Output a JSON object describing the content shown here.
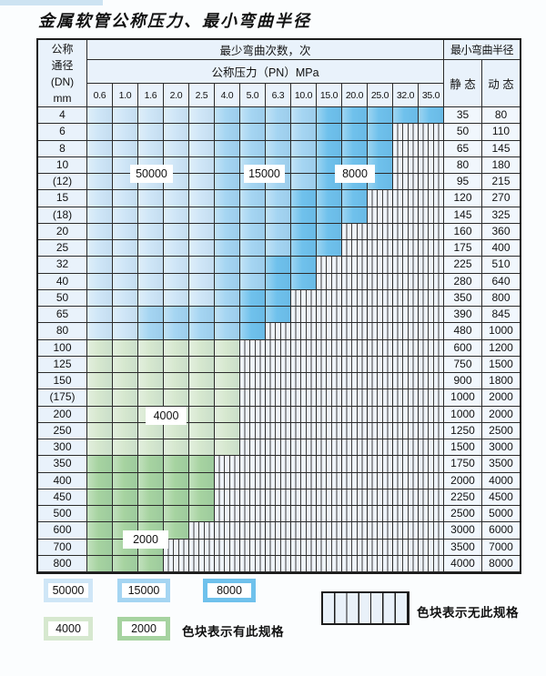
{
  "title": "金属软管公称压力、最小弯曲半径",
  "colors": {
    "cL": "#cfe6f7",
    "cM": "#a5d5f2",
    "cD": "#6fc1ec",
    "cg": "#d6e8cf",
    "cG": "#a6d3a0",
    "headerBg": "#e9f2fb",
    "valueBg": "#f1f7fd",
    "hatchBg": "#eef3f9",
    "grid": "#2b2b2b"
  },
  "table": {
    "header": {
      "dn_lines": [
        "公称",
        "通径",
        "(DN)",
        "mm"
      ],
      "cycles_label": "最少弯曲次数，次",
      "pressure_label": "公称压力（PN）MPa",
      "radius_label": "最小弯曲半径",
      "static_label": "静 态",
      "dynamic_label": "动 态",
      "pressures": [
        "0.6",
        "1.0",
        "1.6",
        "2.0",
        "2.5",
        "4.0",
        "5.0",
        "6.3",
        "10.0",
        "15.0",
        "20.0",
        "25.0",
        "32.0",
        "35.0"
      ]
    },
    "rows": [
      {
        "dn": "4",
        "cells": "LLLLLMMMMDDDDD",
        "static": "35",
        "dynamic": "80"
      },
      {
        "dn": "6",
        "cells": "LLLLLMMMMDDDXX",
        "static": "50",
        "dynamic": "110"
      },
      {
        "dn": "8",
        "cells": "LLLLLMMMMDDDXX",
        "static": "65",
        "dynamic": "145"
      },
      {
        "dn": "10",
        "cells": "LLLLLMMMMDDDXX",
        "static": "80",
        "dynamic": "180"
      },
      {
        "dn": "(12)",
        "cells": "LLLLLMMMMDDDXX",
        "static": "95",
        "dynamic": "215"
      },
      {
        "dn": "15",
        "cells": "LLLLLMMMDDDXXX",
        "static": "120",
        "dynamic": "270"
      },
      {
        "dn": "(18)",
        "cells": "LLLLLMMMDDDXXX",
        "static": "145",
        "dynamic": "325"
      },
      {
        "dn": "20",
        "cells": "LLLLLMMMDDXXXX",
        "static": "160",
        "dynamic": "360"
      },
      {
        "dn": "25",
        "cells": "LLLLLMMMDDXXXX",
        "static": "175",
        "dynamic": "400"
      },
      {
        "dn": "32",
        "cells": "LLLLLMMDDXXXXX",
        "static": "225",
        "dynamic": "510"
      },
      {
        "dn": "40",
        "cells": "LLLLLMMDDXXXXX",
        "static": "280",
        "dynamic": "640"
      },
      {
        "dn": "50",
        "cells": "LLLLLMDDXXXXXX",
        "static": "350",
        "dynamic": "800"
      },
      {
        "dn": "65",
        "cells": "LLMMMMDDXXXXXX",
        "static": "390",
        "dynamic": "845"
      },
      {
        "dn": "80",
        "cells": "LLMMMMDXXXXXXX",
        "static": "480",
        "dynamic": "1000"
      },
      {
        "dn": "100",
        "cells": "ggggggXXXXXXXX",
        "static": "600",
        "dynamic": "1200"
      },
      {
        "dn": "125",
        "cells": "ggggggXXXXXXXX",
        "static": "750",
        "dynamic": "1500"
      },
      {
        "dn": "150",
        "cells": "ggggggXXXXXXXX",
        "static": "900",
        "dynamic": "1800"
      },
      {
        "dn": "(175)",
        "cells": "ggggggXXXXXXXX",
        "static": "1000",
        "dynamic": "2000"
      },
      {
        "dn": "200",
        "cells": "ggggggXXXXXXXX",
        "static": "1000",
        "dynamic": "2000"
      },
      {
        "dn": "250",
        "cells": "ggggggXXXXXXXX",
        "static": "1250",
        "dynamic": "2500"
      },
      {
        "dn": "300",
        "cells": "ggggggXXXXXXXX",
        "static": "1500",
        "dynamic": "3000"
      },
      {
        "dn": "350",
        "cells": "GGGGGXXXXXXXXX",
        "static": "1750",
        "dynamic": "3500"
      },
      {
        "dn": "400",
        "cells": "GGGGGXXXXXXXXX",
        "static": "2000",
        "dynamic": "4000"
      },
      {
        "dn": "450",
        "cells": "GGGGGXXXXXXXXX",
        "static": "2250",
        "dynamic": "4500"
      },
      {
        "dn": "500",
        "cells": "GGGGGXXXXXXXXX",
        "static": "2500",
        "dynamic": "5000"
      },
      {
        "dn": "600",
        "cells": "GGGGXXXXXXXXXX",
        "static": "3000",
        "dynamic": "6000"
      },
      {
        "dn": "700",
        "cells": "GGGXXXXXXXXXXX",
        "static": "3500",
        "dynamic": "7000"
      },
      {
        "dn": "800",
        "cells": "GGGXXXXXXXXXXX",
        "static": "4000",
        "dynamic": "8000"
      }
    ]
  },
  "overlay_labels": [
    {
      "text": "50000"
    },
    {
      "text": "15000"
    },
    {
      "text": "8000"
    },
    {
      "text": "4000"
    },
    {
      "text": "2000"
    }
  ],
  "legend": {
    "items": [
      {
        "label": "50000"
      },
      {
        "label": "15000"
      },
      {
        "label": "8000"
      },
      {
        "label": "4000"
      },
      {
        "label": "2000"
      }
    ],
    "has_spec_label": "色块表示有此规格",
    "no_spec_label": "色块表示无此规格"
  }
}
